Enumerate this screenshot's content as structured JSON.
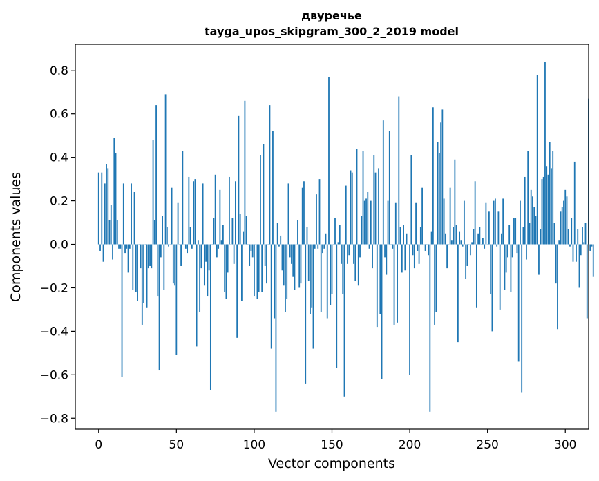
{
  "chart_data": {
    "type": "bar",
    "title": "двуречье",
    "subtitle": "tayga_upos_skipgram_300_2_2019 model",
    "xlabel": "Vector components",
    "ylabel": "Components values",
    "xlim": [
      -15,
      315
    ],
    "ylim": [
      -0.85,
      0.92
    ],
    "xticks": [
      0,
      50,
      100,
      150,
      200,
      250,
      300
    ],
    "xtick_labels": [
      "0",
      "50",
      "100",
      "150",
      "200",
      "250",
      "300"
    ],
    "yticks": [
      -0.8,
      -0.6,
      -0.4,
      -0.2,
      0.0,
      0.2,
      0.4,
      0.6,
      0.8
    ],
    "ytick_labels": [
      "−0.8",
      "−0.6",
      "−0.4",
      "−0.2",
      "0.0",
      "0.2",
      "0.4",
      "0.6",
      "0.8"
    ],
    "grid": false,
    "bar_color": "#1f77b4",
    "values": [
      0.33,
      -0.03,
      0.33,
      -0.08,
      0.28,
      0.37,
      0.35,
      0.11,
      0.18,
      -0.07,
      0.49,
      0.42,
      0.11,
      -0.02,
      -0.02,
      -0.61,
      0.28,
      -0.04,
      -0.02,
      -0.13,
      -0.02,
      0.28,
      -0.21,
      0.24,
      -0.22,
      -0.26,
      0.0,
      -0.11,
      -0.37,
      -0.27,
      0.0,
      -0.29,
      -0.11,
      -0.1,
      -0.11,
      0.48,
      0.11,
      0.64,
      -0.24,
      -0.58,
      -0.06,
      0.13,
      -0.21,
      0.69,
      0.08,
      -0.01,
      0.0,
      0.26,
      -0.18,
      -0.19,
      -0.51,
      0.19,
      0.0,
      -0.1,
      0.43,
      0.0,
      -0.02,
      -0.04,
      0.31,
      0.08,
      -0.02,
      0.29,
      0.3,
      -0.47,
      0.02,
      -0.31,
      -0.11,
      0.28,
      -0.19,
      -0.08,
      -0.24,
      -0.12,
      -0.67,
      0.0,
      0.12,
      0.32,
      -0.06,
      -0.02,
      0.25,
      0.02,
      0.09,
      -0.22,
      -0.25,
      -0.13,
      0.31,
      0.0,
      0.12,
      -0.09,
      0.29,
      -0.43,
      0.59,
      0.14,
      -0.26,
      0.06,
      0.66,
      0.13,
      0.0,
      -0.1,
      -0.03,
      -0.06,
      -0.24,
      0.0,
      -0.25,
      -0.22,
      0.41,
      -0.22,
      0.46,
      -0.1,
      -0.18,
      0.0,
      0.64,
      -0.48,
      0.52,
      -0.34,
      -0.77,
      0.1,
      -0.01,
      0.04,
      -0.12,
      -0.19,
      -0.31,
      -0.25,
      0.28,
      -0.06,
      -0.09,
      -0.15,
      -0.21,
      0.0,
      0.11,
      -0.2,
      -0.18,
      0.26,
      0.29,
      -0.64,
      0.08,
      -0.17,
      -0.32,
      -0.29,
      -0.48,
      -0.02,
      0.23,
      -0.02,
      0.3,
      -0.31,
      -0.04,
      -0.02,
      0.05,
      -0.34,
      0.77,
      -0.28,
      -0.23,
      0.0,
      0.12,
      -0.57,
      0.01,
      0.09,
      -0.09,
      -0.23,
      -0.7,
      0.27,
      -0.09,
      -0.05,
      0.34,
      0.33,
      -0.09,
      -0.17,
      0.44,
      -0.19,
      -0.06,
      0.13,
      0.43,
      0.2,
      0.21,
      0.24,
      -0.02,
      0.2,
      -0.11,
      0.41,
      0.33,
      -0.38,
      0.35,
      -0.32,
      -0.62,
      0.57,
      -0.06,
      -0.14,
      0.2,
      0.52,
      0.0,
      -0.02,
      -0.37,
      0.19,
      -0.36,
      0.68,
      0.08,
      -0.13,
      0.09,
      -0.12,
      0.05,
      0.0,
      -0.6,
      0.41,
      -0.05,
      -0.11,
      0.19,
      -0.03,
      -0.09,
      0.08,
      0.26,
      0.0,
      -0.03,
      0.0,
      -0.05,
      -0.77,
      0.06,
      0.63,
      -0.37,
      -0.31,
      0.47,
      0.42,
      0.56,
      0.62,
      0.21,
      0.05,
      -0.11,
      0.0,
      0.26,
      0.02,
      0.08,
      0.39,
      0.09,
      -0.45,
      0.06,
      0.02,
      -0.01,
      0.2,
      -0.16,
      -0.1,
      0.0,
      -0.05,
      0.01,
      0.07,
      0.29,
      -0.29,
      0.05,
      0.08,
      0.0,
      0.03,
      -0.02,
      0.19,
      0.0,
      0.15,
      -0.23,
      -0.4,
      0.2,
      0.21,
      -0.01,
      0.15,
      -0.3,
      0.05,
      0.21,
      -0.21,
      -0.13,
      -0.06,
      0.09,
      -0.22,
      -0.06,
      0.12,
      0.12,
      -0.04,
      -0.54,
      0.2,
      -0.68,
      0.08,
      0.31,
      -0.07,
      0.43,
      0.1,
      0.25,
      0.22,
      0.17,
      0.13,
      0.78,
      -0.14,
      0.07,
      0.3,
      0.31,
      0.84,
      0.36,
      0.32,
      0.47,
      0.35,
      0.43,
      0.1,
      -0.18,
      -0.39,
      0.02,
      0.15,
      0.17,
      0.2,
      0.25,
      0.22,
      0.07,
      -0.01,
      0.12,
      -0.08,
      0.38,
      -0.08,
      0.07,
      -0.2,
      -0.05,
      0.08,
      0.01,
      0.1,
      -0.34,
      0.67,
      -0.03,
      -0.01,
      -0.15
    ]
  }
}
